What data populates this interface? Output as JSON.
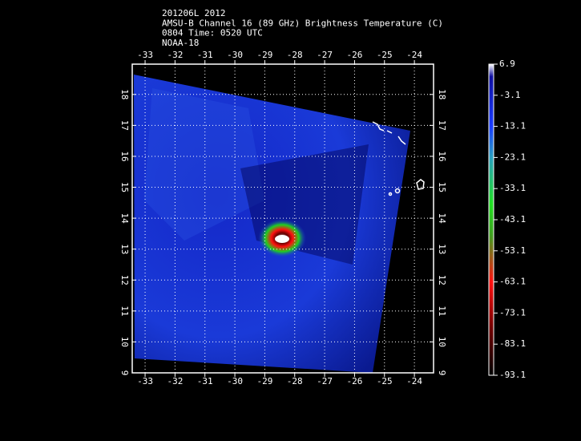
{
  "header": {
    "lines": [
      "201206L 2012",
      "AMSU-B Channel 16 (89 GHz) Brightness Temperature (C)",
      "0804 Time: 0520 UTC",
      "NOAA-18"
    ]
  },
  "map": {
    "xlim": [
      -33.43,
      -23.36
    ],
    "ylim": [
      9,
      18.98
    ],
    "xticks": [
      -33,
      -32,
      -31,
      -30,
      -29,
      -28,
      -27,
      -26,
      -25,
      -24
    ],
    "yticks": [
      9,
      10,
      11,
      12,
      13,
      14,
      15,
      16,
      17,
      18
    ],
    "grid": true
  },
  "colorbar": {
    "lim": [
      -93.1,
      6.9
    ],
    "ticks": [
      6.9,
      -3.1,
      -13.1,
      -23.1,
      -33.1,
      -43.1,
      -53.1,
      -63.1,
      -73.1,
      -83.1,
      -93.1
    ]
  }
}
